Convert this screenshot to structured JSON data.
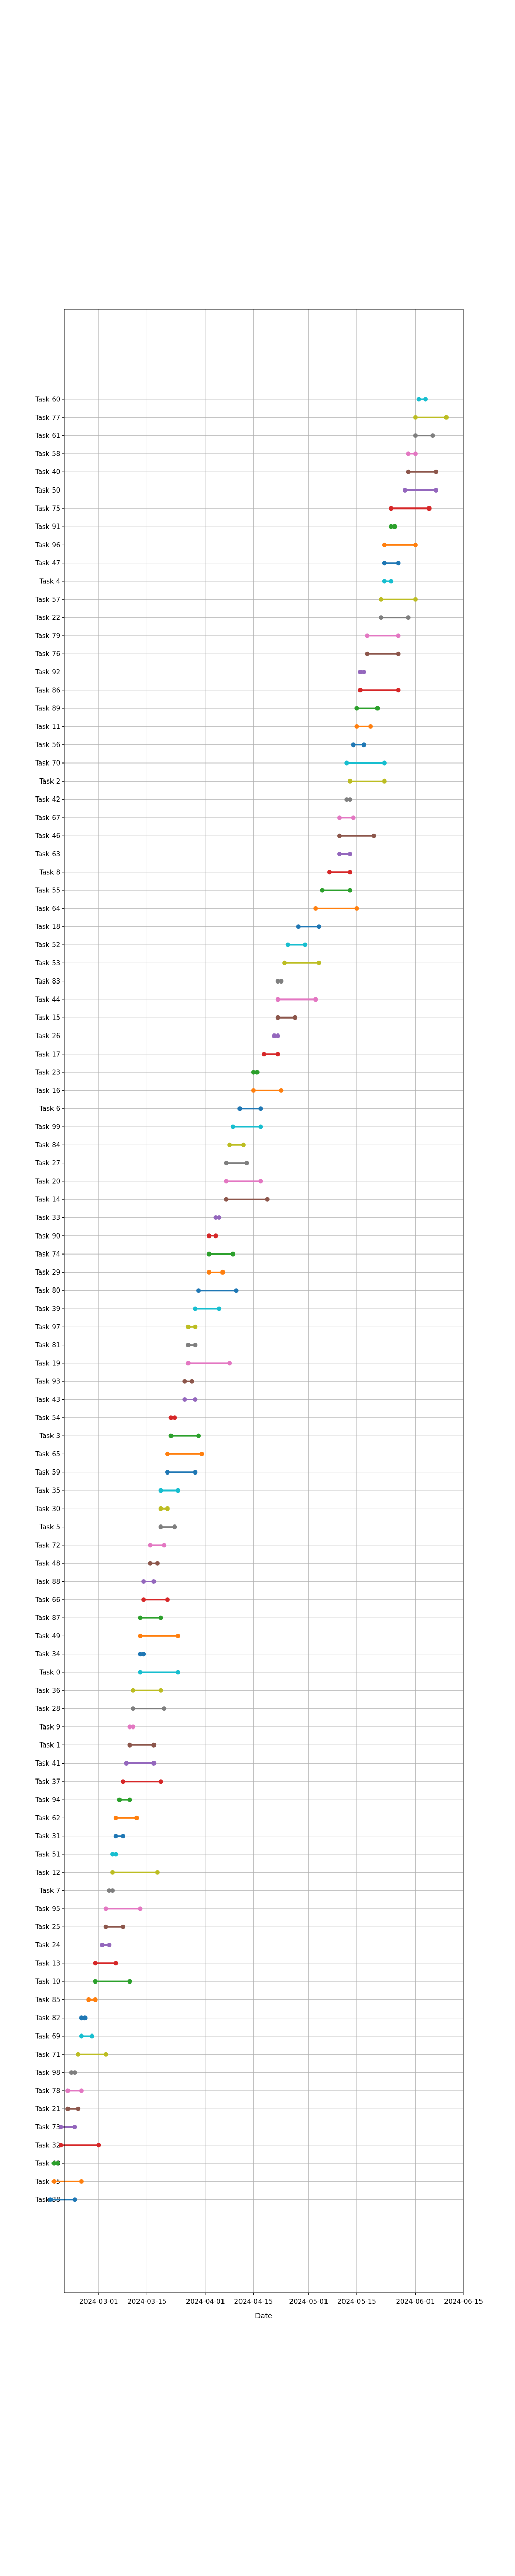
{
  "chart_data": {
    "type": "dumbbell",
    "xlabel": "Date",
    "grid": true,
    "x_ticks": [
      "2024-03-01",
      "2024-03-15",
      "2024-04-01",
      "2024-04-15",
      "2024-05-01",
      "2024-05-15",
      "2024-06-01",
      "2024-06-15"
    ],
    "xlim": [
      "2024-02-20",
      "2024-06-15"
    ],
    "tasks": [
      {
        "label": "Task 60",
        "start": "2024-06-02",
        "end": "2024-06-04",
        "color": "#17becf"
      },
      {
        "label": "Task 77",
        "start": "2024-06-01",
        "end": "2024-06-10",
        "color": "#bcbd22"
      },
      {
        "label": "Task 61",
        "start": "2024-06-01",
        "end": "2024-06-06",
        "color": "#7f7f7f"
      },
      {
        "label": "Task 58",
        "start": "2024-05-30",
        "end": "2024-06-01",
        "color": "#e377c2"
      },
      {
        "label": "Task 40",
        "start": "2024-05-30",
        "end": "2024-06-07",
        "color": "#8c564b"
      },
      {
        "label": "Task 50",
        "start": "2024-05-29",
        "end": "2024-06-07",
        "color": "#9467bd"
      },
      {
        "label": "Task 75",
        "start": "2024-05-25",
        "end": "2024-06-05",
        "color": "#d62728"
      },
      {
        "label": "Task 91",
        "start": "2024-05-25",
        "end": "2024-05-26",
        "color": "#2ca02c"
      },
      {
        "label": "Task 96",
        "start": "2024-05-23",
        "end": "2024-06-01",
        "color": "#ff7f0e"
      },
      {
        "label": "Task 47",
        "start": "2024-05-23",
        "end": "2024-05-27",
        "color": "#1f77b4"
      },
      {
        "label": "Task 4",
        "start": "2024-05-23",
        "end": "2024-05-25",
        "color": "#17becf"
      },
      {
        "label": "Task 57",
        "start": "2024-05-22",
        "end": "2024-06-01",
        "color": "#bcbd22"
      },
      {
        "label": "Task 22",
        "start": "2024-05-22",
        "end": "2024-05-30",
        "color": "#7f7f7f"
      },
      {
        "label": "Task 79",
        "start": "2024-05-18",
        "end": "2024-05-27",
        "color": "#e377c2"
      },
      {
        "label": "Task 76",
        "start": "2024-05-18",
        "end": "2024-05-27",
        "color": "#8c564b"
      },
      {
        "label": "Task 92",
        "start": "2024-05-16",
        "end": "2024-05-17",
        "color": "#9467bd"
      },
      {
        "label": "Task 86",
        "start": "2024-05-16",
        "end": "2024-05-27",
        "color": "#d62728"
      },
      {
        "label": "Task 89",
        "start": "2024-05-15",
        "end": "2024-05-21",
        "color": "#2ca02c"
      },
      {
        "label": "Task 11",
        "start": "2024-05-15",
        "end": "2024-05-19",
        "color": "#ff7f0e"
      },
      {
        "label": "Task 56",
        "start": "2024-05-14",
        "end": "2024-05-17",
        "color": "#1f77b4"
      },
      {
        "label": "Task 70",
        "start": "2024-05-12",
        "end": "2024-05-23",
        "color": "#17becf"
      },
      {
        "label": "Task 2",
        "start": "2024-05-13",
        "end": "2024-05-23",
        "color": "#bcbd22"
      },
      {
        "label": "Task 42",
        "start": "2024-05-12",
        "end": "2024-05-13",
        "color": "#7f7f7f"
      },
      {
        "label": "Task 67",
        "start": "2024-05-10",
        "end": "2024-05-14",
        "color": "#e377c2"
      },
      {
        "label": "Task 46",
        "start": "2024-05-10",
        "end": "2024-05-20",
        "color": "#8c564b"
      },
      {
        "label": "Task 63",
        "start": "2024-05-10",
        "end": "2024-05-13",
        "color": "#9467bd"
      },
      {
        "label": "Task 8",
        "start": "2024-05-07",
        "end": "2024-05-13",
        "color": "#d62728"
      },
      {
        "label": "Task 55",
        "start": "2024-05-05",
        "end": "2024-05-13",
        "color": "#2ca02c"
      },
      {
        "label": "Task 64",
        "start": "2024-05-03",
        "end": "2024-05-15",
        "color": "#ff7f0e"
      },
      {
        "label": "Task 18",
        "start": "2024-04-28",
        "end": "2024-05-04",
        "color": "#1f77b4"
      },
      {
        "label": "Task 52",
        "start": "2024-04-25",
        "end": "2024-04-30",
        "color": "#17becf"
      },
      {
        "label": "Task 53",
        "start": "2024-04-24",
        "end": "2024-05-04",
        "color": "#bcbd22"
      },
      {
        "label": "Task 83",
        "start": "2024-04-22",
        "end": "2024-04-23",
        "color": "#7f7f7f"
      },
      {
        "label": "Task 44",
        "start": "2024-04-22",
        "end": "2024-05-03",
        "color": "#e377c2"
      },
      {
        "label": "Task 15",
        "start": "2024-04-22",
        "end": "2024-04-27",
        "color": "#8c564b"
      },
      {
        "label": "Task 26",
        "start": "2024-04-21",
        "end": "2024-04-22",
        "color": "#9467bd"
      },
      {
        "label": "Task 17",
        "start": "2024-04-18",
        "end": "2024-04-22",
        "color": "#d62728"
      },
      {
        "label": "Task 23",
        "start": "2024-04-15",
        "end": "2024-04-16",
        "color": "#2ca02c"
      },
      {
        "label": "Task 16",
        "start": "2024-04-15",
        "end": "2024-04-23",
        "color": "#ff7f0e"
      },
      {
        "label": "Task 6",
        "start": "2024-04-11",
        "end": "2024-04-17",
        "color": "#1f77b4"
      },
      {
        "label": "Task 99",
        "start": "2024-04-09",
        "end": "2024-04-17",
        "color": "#17becf"
      },
      {
        "label": "Task 84",
        "start": "2024-04-08",
        "end": "2024-04-12",
        "color": "#bcbd22"
      },
      {
        "label": "Task 27",
        "start": "2024-04-07",
        "end": "2024-04-13",
        "color": "#7f7f7f"
      },
      {
        "label": "Task 20",
        "start": "2024-04-07",
        "end": "2024-04-17",
        "color": "#e377c2"
      },
      {
        "label": "Task 14",
        "start": "2024-04-07",
        "end": "2024-04-19",
        "color": "#8c564b"
      },
      {
        "label": "Task 33",
        "start": "2024-04-04",
        "end": "2024-04-05",
        "color": "#9467bd"
      },
      {
        "label": "Task 90",
        "start": "2024-04-02",
        "end": "2024-04-04",
        "color": "#d62728"
      },
      {
        "label": "Task 74",
        "start": "2024-04-02",
        "end": "2024-04-09",
        "color": "#2ca02c"
      },
      {
        "label": "Task 29",
        "start": "2024-04-02",
        "end": "2024-04-06",
        "color": "#ff7f0e"
      },
      {
        "label": "Task 80",
        "start": "2024-03-30",
        "end": "2024-04-10",
        "color": "#1f77b4"
      },
      {
        "label": "Task 39",
        "start": "2024-03-29",
        "end": "2024-04-05",
        "color": "#17becf"
      },
      {
        "label": "Task 97",
        "start": "2024-03-27",
        "end": "2024-03-29",
        "color": "#bcbd22"
      },
      {
        "label": "Task 81",
        "start": "2024-03-27",
        "end": "2024-03-29",
        "color": "#7f7f7f"
      },
      {
        "label": "Task 19",
        "start": "2024-03-27",
        "end": "2024-04-08",
        "color": "#e377c2"
      },
      {
        "label": "Task 93",
        "start": "2024-03-26",
        "end": "2024-03-28",
        "color": "#8c564b"
      },
      {
        "label": "Task 43",
        "start": "2024-03-26",
        "end": "2024-03-29",
        "color": "#9467bd"
      },
      {
        "label": "Task 54",
        "start": "2024-03-22",
        "end": "2024-03-23",
        "color": "#d62728"
      },
      {
        "label": "Task 3",
        "start": "2024-03-22",
        "end": "2024-03-30",
        "color": "#2ca02c"
      },
      {
        "label": "Task 65",
        "start": "2024-03-21",
        "end": "2024-03-31",
        "color": "#ff7f0e"
      },
      {
        "label": "Task 59",
        "start": "2024-03-21",
        "end": "2024-03-29",
        "color": "#1f77b4"
      },
      {
        "label": "Task 35",
        "start": "2024-03-19",
        "end": "2024-03-24",
        "color": "#17becf"
      },
      {
        "label": "Task 30",
        "start": "2024-03-19",
        "end": "2024-03-21",
        "color": "#bcbd22"
      },
      {
        "label": "Task 5",
        "start": "2024-03-19",
        "end": "2024-03-23",
        "color": "#7f7f7f"
      },
      {
        "label": "Task 72",
        "start": "2024-03-16",
        "end": "2024-03-20",
        "color": "#e377c2"
      },
      {
        "label": "Task 48",
        "start": "2024-03-16",
        "end": "2024-03-18",
        "color": "#8c564b"
      },
      {
        "label": "Task 88",
        "start": "2024-03-14",
        "end": "2024-03-17",
        "color": "#9467bd"
      },
      {
        "label": "Task 66",
        "start": "2024-03-14",
        "end": "2024-03-21",
        "color": "#d62728"
      },
      {
        "label": "Task 87",
        "start": "2024-03-13",
        "end": "2024-03-19",
        "color": "#2ca02c"
      },
      {
        "label": "Task 49",
        "start": "2024-03-13",
        "end": "2024-03-24",
        "color": "#ff7f0e"
      },
      {
        "label": "Task 34",
        "start": "2024-03-13",
        "end": "2024-03-14",
        "color": "#1f77b4"
      },
      {
        "label": "Task 0",
        "start": "2024-03-13",
        "end": "2024-03-24",
        "color": "#17becf"
      },
      {
        "label": "Task 36",
        "start": "2024-03-11",
        "end": "2024-03-19",
        "color": "#bcbd22"
      },
      {
        "label": "Task 28",
        "start": "2024-03-11",
        "end": "2024-03-20",
        "color": "#7f7f7f"
      },
      {
        "label": "Task 9",
        "start": "2024-03-10",
        "end": "2024-03-11",
        "color": "#e377c2"
      },
      {
        "label": "Task 1",
        "start": "2024-03-10",
        "end": "2024-03-17",
        "color": "#8c564b"
      },
      {
        "label": "Task 41",
        "start": "2024-03-09",
        "end": "2024-03-17",
        "color": "#9467bd"
      },
      {
        "label": "Task 37",
        "start": "2024-03-08",
        "end": "2024-03-19",
        "color": "#d62728"
      },
      {
        "label": "Task 94",
        "start": "2024-03-07",
        "end": "2024-03-10",
        "color": "#2ca02c"
      },
      {
        "label": "Task 62",
        "start": "2024-03-06",
        "end": "2024-03-12",
        "color": "#ff7f0e"
      },
      {
        "label": "Task 31",
        "start": "2024-03-06",
        "end": "2024-03-08",
        "color": "#1f77b4"
      },
      {
        "label": "Task 51",
        "start": "2024-03-05",
        "end": "2024-03-06",
        "color": "#17becf"
      },
      {
        "label": "Task 12",
        "start": "2024-03-05",
        "end": "2024-03-18",
        "color": "#bcbd22"
      },
      {
        "label": "Task 7",
        "start": "2024-03-04",
        "end": "2024-03-05",
        "color": "#7f7f7f"
      },
      {
        "label": "Task 95",
        "start": "2024-03-03",
        "end": "2024-03-13",
        "color": "#e377c2"
      },
      {
        "label": "Task 25",
        "start": "2024-03-03",
        "end": "2024-03-08",
        "color": "#8c564b"
      },
      {
        "label": "Task 24",
        "start": "2024-03-02",
        "end": "2024-03-04",
        "color": "#9467bd"
      },
      {
        "label": "Task 13",
        "start": "2024-02-29",
        "end": "2024-03-06",
        "color": "#d62728"
      },
      {
        "label": "Task 10",
        "start": "2024-02-29",
        "end": "2024-03-10",
        "color": "#2ca02c"
      },
      {
        "label": "Task 85",
        "start": "2024-02-27",
        "end": "2024-02-29",
        "color": "#ff7f0e"
      },
      {
        "label": "Task 82",
        "start": "2024-02-25",
        "end": "2024-02-26",
        "color": "#1f77b4"
      },
      {
        "label": "Task 69",
        "start": "2024-02-25",
        "end": "2024-02-28",
        "color": "#17becf"
      },
      {
        "label": "Task 71",
        "start": "2024-02-24",
        "end": "2024-03-03",
        "color": "#bcbd22"
      },
      {
        "label": "Task 98",
        "start": "2024-02-22",
        "end": "2024-02-23",
        "color": "#7f7f7f"
      },
      {
        "label": "Task 78",
        "start": "2024-02-21",
        "end": "2024-02-25",
        "color": "#e377c2"
      },
      {
        "label": "Task 21",
        "start": "2024-02-21",
        "end": "2024-02-24",
        "color": "#8c564b"
      },
      {
        "label": "Task 73",
        "start": "2024-02-19",
        "end": "2024-02-23",
        "color": "#9467bd"
      },
      {
        "label": "Task 32",
        "start": "2024-02-19",
        "end": "2024-03-01",
        "color": "#d62728"
      },
      {
        "label": "Task 68",
        "start": "2024-02-17",
        "end": "2024-02-18",
        "color": "#2ca02c"
      },
      {
        "label": "Task 45",
        "start": "2024-02-17",
        "end": "2024-02-25",
        "color": "#ff7f0e"
      },
      {
        "label": "Task 38",
        "start": "2024-02-16",
        "end": "2024-02-23",
        "color": "#1f77b4"
      }
    ]
  }
}
